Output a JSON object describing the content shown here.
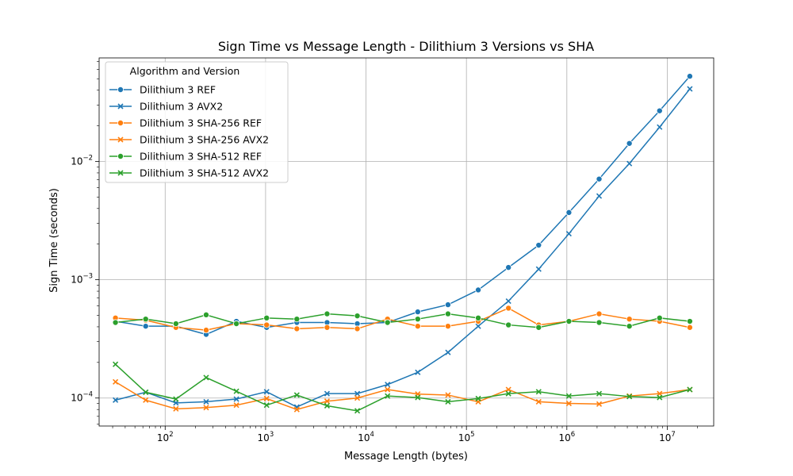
{
  "chart_data": {
    "type": "line",
    "title": "Sign Time vs Message Length - Dilithium 3 Versions vs SHA",
    "xlabel": "Message Length (bytes)",
    "ylabel": "Sign Time (seconds)",
    "xscale": "log",
    "yscale": "log",
    "xlim": [
      22,
      29000000
    ],
    "ylim": [
      5.8e-05,
      0.075
    ],
    "grid": true,
    "x_ticks": [
      {
        "value": 100,
        "base": "10",
        "exp": "2"
      },
      {
        "value": 1000,
        "base": "10",
        "exp": "3"
      },
      {
        "value": 10000,
        "base": "10",
        "exp": "4"
      },
      {
        "value": 100000,
        "base": "10",
        "exp": "5"
      },
      {
        "value": 1000000,
        "base": "10",
        "exp": "6"
      },
      {
        "value": 10000000,
        "base": "10",
        "exp": "7"
      }
    ],
    "y_ticks": [
      {
        "value": 0.0001,
        "base": "10",
        "exp": "−4"
      },
      {
        "value": 0.001,
        "base": "10",
        "exp": "−3"
      },
      {
        "value": 0.01,
        "base": "10",
        "exp": "−2"
      }
    ],
    "legend": {
      "title": "Algorithm and Version",
      "position": "upper-left"
    },
    "x": [
      32,
      64,
      128,
      256,
      512,
      1024,
      2048,
      4096,
      8192,
      16384,
      32768,
      65536,
      131072,
      262144,
      524288,
      1048576,
      2097152,
      4194304,
      8388608,
      16777216
    ],
    "series": [
      {
        "name": "Dilithium 3 REF",
        "color": "#1f77b4",
        "marker": "circle",
        "values": [
          0.000445,
          0.000405,
          0.000405,
          0.000345,
          0.000445,
          0.000395,
          0.000435,
          0.000435,
          0.000425,
          0.000435,
          0.000535,
          0.000615,
          0.00082,
          0.00127,
          0.00196,
          0.0037,
          0.0071,
          0.0142,
          0.0268,
          0.0525
        ]
      },
      {
        "name": "Dilithium 3 AVX2",
        "color": "#1f77b4",
        "marker": "x",
        "values": [
          9.6e-05,
          0.000112,
          9.1e-05,
          9.3e-05,
          9.8e-05,
          0.000113,
          8.4e-05,
          0.000109,
          0.000109,
          0.00013,
          0.000165,
          0.000243,
          0.000405,
          0.00066,
          0.00123,
          0.00245,
          0.0051,
          0.0096,
          0.0195,
          0.041
        ]
      },
      {
        "name": "Dilithium 3 SHA-256 REF",
        "color": "#ff7f0e",
        "marker": "circle",
        "values": [
          0.000475,
          0.000455,
          0.000395,
          0.000375,
          0.000425,
          0.000415,
          0.000385,
          0.000395,
          0.000385,
          0.000465,
          0.000405,
          0.000405,
          0.000445,
          0.000575,
          0.000415,
          0.000445,
          0.000515,
          0.000465,
          0.000445,
          0.000395
        ]
      },
      {
        "name": "Dilithium 3 SHA-256 AVX2",
        "color": "#ff7f0e",
        "marker": "x",
        "values": [
          0.000137,
          9.6e-05,
          8.1e-05,
          8.3e-05,
          8.7e-05,
          9.9e-05,
          8e-05,
          9.4e-05,
          0.0001,
          0.000118,
          0.000108,
          0.000106,
          9.3e-05,
          0.000118,
          9.3e-05,
          9e-05,
          8.9e-05,
          0.000104,
          0.000109,
          0.000118
        ]
      },
      {
        "name": "Dilithium 3 SHA-512 REF",
        "color": "#2ca02c",
        "marker": "circle",
        "values": [
          0.000435,
          0.000465,
          0.000425,
          0.000505,
          0.000425,
          0.000475,
          0.000465,
          0.000515,
          0.000495,
          0.000435,
          0.000465,
          0.000515,
          0.000475,
          0.000415,
          0.000395,
          0.000445,
          0.000435,
          0.000405,
          0.000475,
          0.000445
        ]
      },
      {
        "name": "Dilithium 3 SHA-512 AVX2",
        "color": "#2ca02c",
        "marker": "x",
        "values": [
          0.000193,
          0.000112,
          9.8e-05,
          0.000149,
          0.000114,
          8.7e-05,
          0.000106,
          8.6e-05,
          7.8e-05,
          0.000104,
          0.000101,
          9.3e-05,
          9.9e-05,
          0.000109,
          0.000113,
          0.000104,
          0.000109,
          0.000103,
          0.000101,
          0.000118
        ]
      }
    ]
  }
}
